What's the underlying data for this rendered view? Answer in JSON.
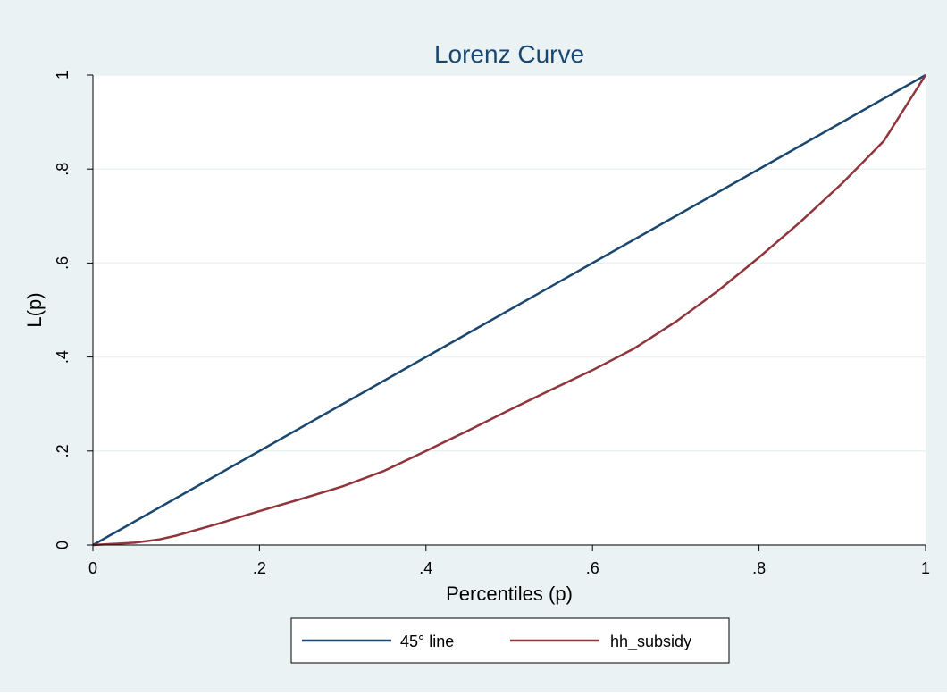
{
  "chart_data": {
    "type": "line",
    "title": "Lorenz Curve",
    "xlabel": "Percentiles (p)",
    "ylabel": "L(p)",
    "xlim": [
      0,
      1
    ],
    "ylim": [
      0,
      1
    ],
    "xticks": [
      0,
      0.2,
      0.4,
      0.6,
      0.8,
      1
    ],
    "xtick_labels": [
      "0",
      ".2",
      ".4",
      ".6",
      ".8",
      "1"
    ],
    "yticks": [
      0,
      0.2,
      0.4,
      0.6,
      0.8,
      1
    ],
    "ytick_labels": [
      "0",
      ".2",
      ".4",
      ".6",
      ".8",
      "1"
    ],
    "grid": "horizontal",
    "legend_position": "bottom",
    "series": [
      {
        "name": "45° line",
        "color": "#1a476f",
        "x": [
          0,
          1
        ],
        "y": [
          0,
          1
        ]
      },
      {
        "name": "hh_subsidy",
        "color": "#90353b",
        "x": [
          0,
          0.05,
          0.08,
          0.1,
          0.15,
          0.2,
          0.25,
          0.3,
          0.35,
          0.4,
          0.45,
          0.5,
          0.55,
          0.6,
          0.65,
          0.7,
          0.75,
          0.8,
          0.85,
          0.9,
          0.95,
          1
        ],
        "y": [
          0,
          0.005,
          0.012,
          0.02,
          0.045,
          0.072,
          0.098,
          0.125,
          0.158,
          0.2,
          0.243,
          0.287,
          0.33,
          0.372,
          0.418,
          0.475,
          0.54,
          0.612,
          0.688,
          0.77,
          0.86,
          1
        ]
      }
    ]
  },
  "colors": {
    "background": "#eaf2f3",
    "plot_area": "#ffffff",
    "grid": "#eaf2f3",
    "title": "#1a476f"
  }
}
